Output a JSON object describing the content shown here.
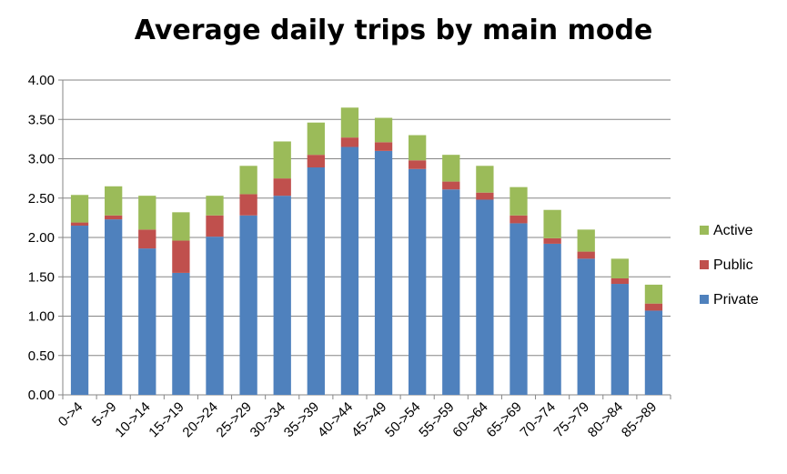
{
  "chart_data": {
    "type": "bar",
    "stacked": true,
    "title": "Average daily trips by main mode",
    "xlabel": "",
    "ylabel": "",
    "categories": [
      "0->4",
      "5->9",
      "10->14",
      "15->19",
      "20->24",
      "25->29",
      "30->34",
      "35->39",
      "40->44",
      "45->49",
      "50->54",
      "55->59",
      "60->64",
      "65->69",
      "70->74",
      "75->79",
      "80->84",
      "85->89"
    ],
    "series": [
      {
        "name": "Private",
        "color": "#4f81bd",
        "values": [
          2.15,
          2.23,
          1.86,
          1.55,
          2.01,
          2.28,
          2.53,
          2.89,
          3.15,
          3.1,
          2.87,
          2.61,
          2.48,
          2.18,
          1.92,
          1.73,
          1.41,
          1.07
        ]
      },
      {
        "name": "Public",
        "color": "#c0504d",
        "values": [
          0.04,
          0.05,
          0.24,
          0.41,
          0.27,
          0.27,
          0.22,
          0.16,
          0.12,
          0.11,
          0.11,
          0.1,
          0.09,
          0.1,
          0.07,
          0.09,
          0.07,
          0.09
        ]
      },
      {
        "name": "Active",
        "color": "#9bbb59",
        "values": [
          0.35,
          0.37,
          0.43,
          0.36,
          0.25,
          0.36,
          0.47,
          0.41,
          0.38,
          0.31,
          0.32,
          0.34,
          0.34,
          0.36,
          0.36,
          0.28,
          0.25,
          0.24
        ]
      }
    ],
    "yticks": [
      "0.00",
      "0.50",
      "1.00",
      "1.50",
      "2.00",
      "2.50",
      "3.00",
      "3.50",
      "4.00"
    ],
    "ylim": [
      0,
      4
    ],
    "grid": "horizontal",
    "legend_position": "right",
    "legend_order": [
      "Active",
      "Public",
      "Private"
    ]
  }
}
